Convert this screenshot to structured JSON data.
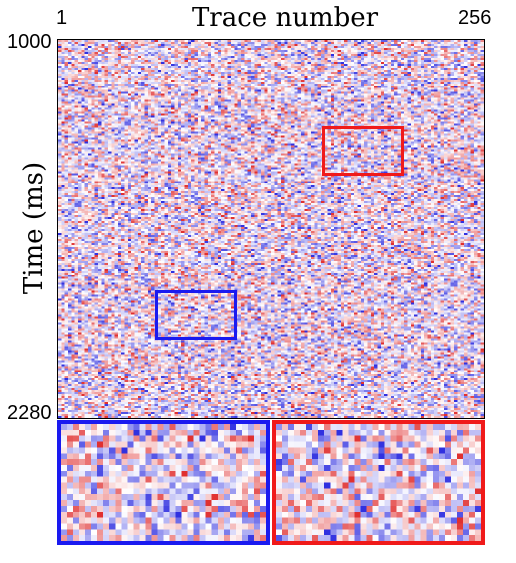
{
  "x_axis": {
    "title": "Trace number",
    "start_label": "1",
    "end_label": "256"
  },
  "y_axis": {
    "title": "Time (ms)",
    "top_label": "1000",
    "bottom_label": "2280"
  },
  "colormap": {
    "positive": "#e03030",
    "neutral": "#ffffff",
    "negative": "#3030e0"
  },
  "highlight_colors": {
    "blue": "#1a1af0",
    "red": "#f01a1a"
  }
}
